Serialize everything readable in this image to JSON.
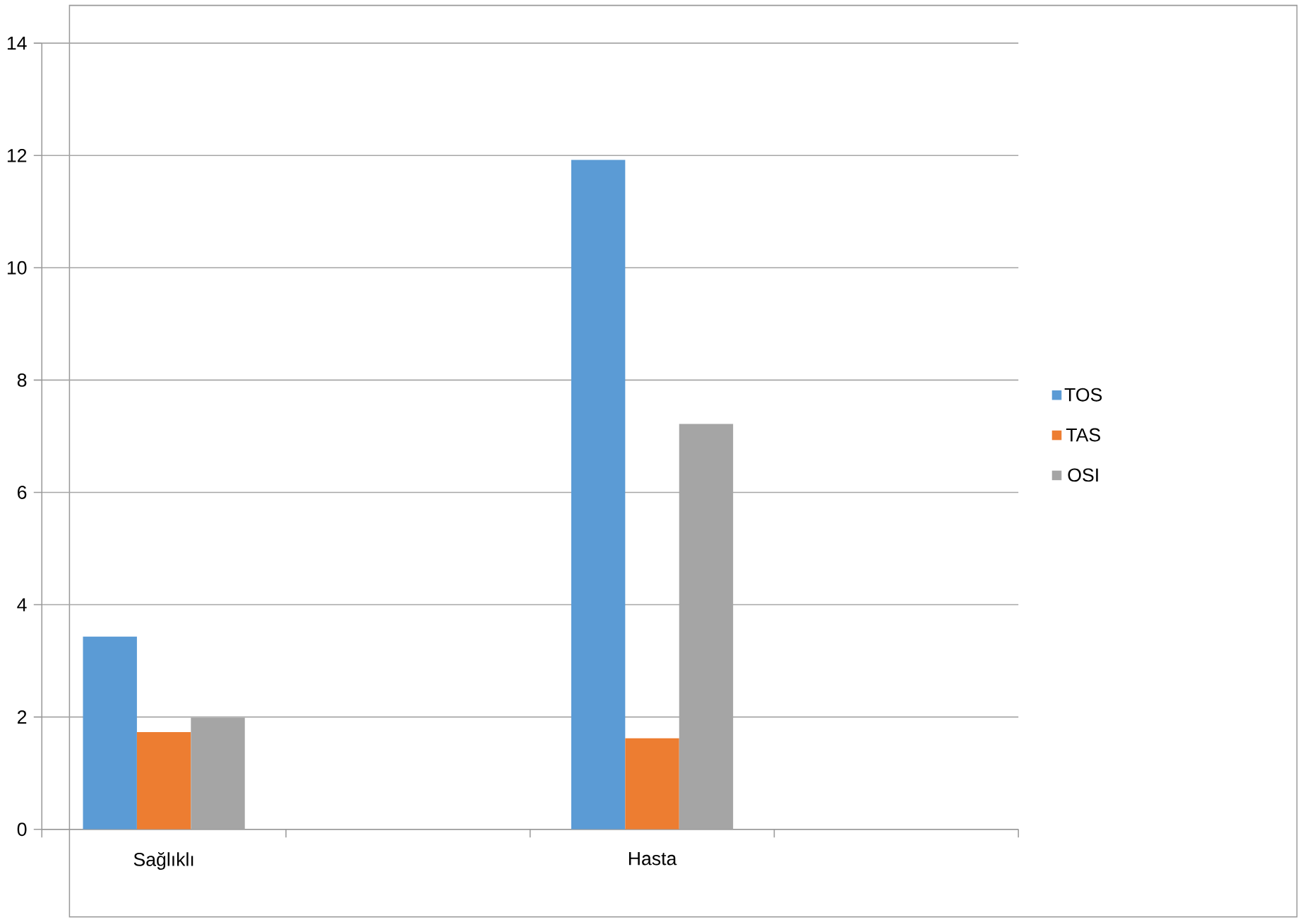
{
  "chart_data": {
    "type": "bar",
    "categories": [
      "Sağlıklı",
      null,
      "Hasta",
      null
    ],
    "series": [
      {
        "name": "TOS",
        "color": "#5b9bd5",
        "values": [
          3.43,
          null,
          11.92,
          null
        ]
      },
      {
        "name": "TAS",
        "color": "#ed7d31",
        "values": [
          1.73,
          null,
          1.62,
          null
        ]
      },
      {
        "name": "OSI",
        "color": "#a5a5a5",
        "values": [
          1.99,
          null,
          7.22,
          null
        ]
      }
    ],
    "ylim": [
      0,
      14
    ],
    "yticks": [
      0,
      2,
      4,
      6,
      8,
      10,
      12,
      14
    ],
    "grid": "y",
    "legend": "right"
  }
}
